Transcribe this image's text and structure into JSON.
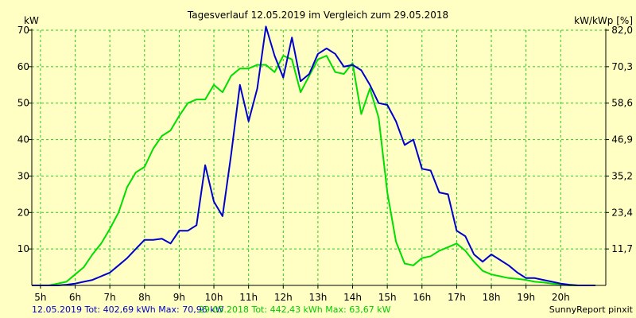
{
  "chart_data": {
    "type": "line",
    "title": "Tagesverlauf 12.05.2019 im Vergleich zum 29.05.2018",
    "ylabel_left": "kW",
    "ylabel_right": "kW/kWp [%]",
    "ylim": [
      0,
      70
    ],
    "y_ticks": [
      "10",
      "20",
      "30",
      "40",
      "50",
      "60",
      "70"
    ],
    "y2_ticks": [
      "11,7",
      "23,4",
      "35,2",
      "46,9",
      "58,6",
      "70,3",
      "82,0"
    ],
    "x_range": [
      4.75,
      21.3
    ],
    "x_ticks": [
      {
        "v": 5,
        "label": "5h"
      },
      {
        "v": 6,
        "label": "6h"
      },
      {
        "v": 7,
        "label": "7h"
      },
      {
        "v": 8,
        "label": "8h"
      },
      {
        "v": 9,
        "label": "9h"
      },
      {
        "v": 10,
        "label": "10h"
      },
      {
        "v": 11,
        "label": "11h"
      },
      {
        "v": 12,
        "label": "12h"
      },
      {
        "v": 13,
        "label": "13h"
      },
      {
        "v": 14,
        "label": "14h"
      },
      {
        "v": 15,
        "label": "15h"
      },
      {
        "v": 16,
        "label": "16h"
      },
      {
        "v": 17,
        "label": "17h"
      },
      {
        "v": 18,
        "label": "18h"
      },
      {
        "v": 19,
        "label": "19h"
      },
      {
        "v": 20,
        "label": "20h"
      }
    ],
    "grid": true,
    "colors": {
      "background": "#ffffc4",
      "grid": "#22cc22",
      "axis": "#000000",
      "series1": "#0000cc",
      "series2": "#00dd00"
    },
    "series": [
      {
        "name": "12.05.2019",
        "x": [
          4.75,
          5.25,
          5.5,
          5.75,
          6.0,
          6.25,
          6.5,
          6.75,
          7.0,
          7.25,
          7.5,
          7.75,
          8.0,
          8.25,
          8.5,
          8.75,
          9.0,
          9.25,
          9.5,
          9.75,
          10.0,
          10.25,
          10.5,
          10.75,
          11.0,
          11.25,
          11.5,
          11.75,
          12.0,
          12.25,
          12.5,
          12.75,
          13.0,
          13.25,
          13.5,
          13.75,
          14.0,
          14.25,
          14.5,
          14.75,
          15.0,
          15.25,
          15.5,
          15.75,
          16.0,
          16.25,
          16.5,
          16.75,
          17.0,
          17.25,
          17.5,
          17.75,
          18.0,
          18.25,
          18.5,
          18.75,
          19.0,
          19.25,
          19.5,
          19.75,
          20.0,
          20.25,
          20.5,
          20.75,
          21.0
        ],
        "values": [
          0,
          0,
          0,
          0.2,
          0.5,
          1,
          1.5,
          2.5,
          3.5,
          5.5,
          7.5,
          10,
          12.5,
          12.5,
          12.8,
          11.5,
          15,
          15,
          16.5,
          33,
          23,
          19,
          36,
          55,
          45,
          54,
          71,
          63,
          57,
          68,
          56,
          58,
          63.5,
          65,
          63.5,
          60,
          60.5,
          59,
          55,
          50,
          49.5,
          45,
          38.5,
          40,
          32,
          31.5,
          25.5,
          25,
          15,
          13.5,
          8.5,
          6.5,
          8.5,
          7,
          5.5,
          3.5,
          2,
          2,
          1.5,
          1,
          0.5,
          0.2,
          0,
          0,
          0
        ]
      },
      {
        "name": "29.05.2018",
        "x": [
          4.75,
          5.0,
          5.25,
          5.5,
          5.75,
          6.0,
          6.25,
          6.5,
          6.75,
          7.0,
          7.25,
          7.5,
          7.75,
          8.0,
          8.25,
          8.5,
          8.75,
          9.0,
          9.25,
          9.5,
          9.75,
          10.0,
          10.25,
          10.5,
          10.75,
          11.0,
          11.25,
          11.5,
          11.75,
          12.0,
          12.25,
          12.5,
          12.75,
          13.0,
          13.25,
          13.5,
          13.75,
          14.0,
          14.25,
          14.5,
          14.75,
          15.0,
          15.25,
          15.5,
          15.75,
          16.0,
          16.25,
          16.5,
          16.75,
          17.0,
          17.25,
          17.5,
          17.75,
          18.0,
          18.25,
          18.5,
          18.75,
          19.0,
          19.25,
          19.5,
          19.75,
          20.0,
          20.25,
          20.5,
          20.75,
          21.0
        ],
        "values": [
          0,
          0,
          0,
          0.5,
          1,
          3,
          5,
          8.5,
          11.5,
          15.5,
          20,
          27,
          31,
          32.5,
          37.5,
          41,
          42.5,
          46.5,
          50,
          51,
          51,
          55,
          53,
          57.5,
          59.5,
          59.5,
          60.5,
          60.5,
          58.5,
          63,
          62,
          53,
          57.5,
          62,
          63,
          58.5,
          58,
          61,
          47,
          54,
          46,
          25.5,
          12,
          6,
          5.5,
          7.5,
          8,
          9.5,
          10.5,
          11.5,
          9.5,
          6.5,
          4,
          3,
          2.5,
          2,
          1.8,
          1.5,
          1,
          0.8,
          0.5,
          0.3,
          0,
          0,
          0,
          0
        ]
      }
    ]
  },
  "legend": {
    "series1_text": "12.05.2019 Tot: 402,69 kWh Max: 70,96 kW",
    "series2_text": "29.05.2018 Tot: 442,43 kWh Max: 63,67 kW",
    "credit": "SunnyReport pinxit"
  }
}
